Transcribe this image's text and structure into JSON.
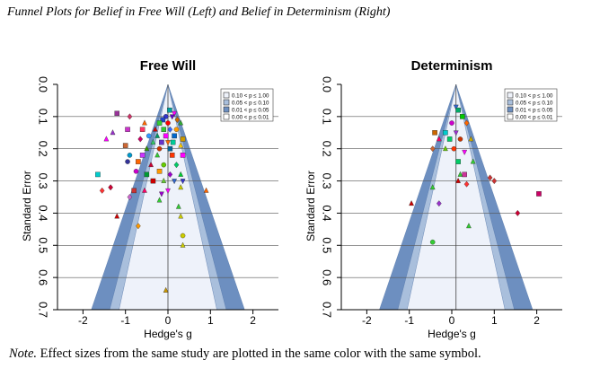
{
  "figure": {
    "title": "Funnel Plots for Belief in Free Will (Left) and Belief in Determinism (Right)",
    "note_label": "Note.",
    "note_text": " Effect sizes from the same study are plotted in the same color with the same symbol."
  },
  "colors": {
    "band_dark": "#6d8fc0",
    "band_mid": "#a9bfdc",
    "band_light": "#eef2fa",
    "grid": "#555555",
    "axis": "#000000"
  },
  "chart_data": [
    {
      "type": "scatter",
      "title": "Free Will",
      "xlabel": "Hedge's g",
      "ylabel": "Standard Error",
      "xlim": [
        -2.6,
        2.6
      ],
      "ylim": [
        0.7,
        0.0
      ],
      "x_ticks": [
        -2,
        -1,
        0,
        1,
        2
      ],
      "x_tick_labels": [
        "-2",
        "-1",
        "0",
        "1",
        "2"
      ],
      "y_ticks": [
        0.0,
        0.1,
        0.2,
        0.3,
        0.4,
        0.5,
        0.6,
        0.7
      ],
      "y_tick_labels": [
        "0.0",
        "0.1",
        "0.2",
        "0.3",
        "0.4",
        "0.5",
        "0.6",
        "0.7"
      ],
      "y_reversed": true,
      "grid": "horizontal",
      "center": 0.0,
      "legend_position": "top-right",
      "legend": [
        "0.10 < p ≤ 1.00",
        "0.05 < p ≤ 0.10",
        "0.01 < p ≤ 0.05",
        "0.00 < p ≤ 0.01"
      ],
      "points": [
        {
          "x": 0.04,
          "y": 0.08,
          "shape": "square",
          "color": "#00a0a0"
        },
        {
          "x": 0.15,
          "y": 0.09,
          "shape": "tri-down",
          "color": "#ff00ff"
        },
        {
          "x": -0.05,
          "y": 0.1,
          "shape": "circle",
          "color": "#3333cc"
        },
        {
          "x": 0.1,
          "y": 0.1,
          "shape": "tri-down",
          "color": "#6600cc"
        },
        {
          "x": 0.22,
          "y": 0.11,
          "shape": "diamond",
          "color": "#cc6600"
        },
        {
          "x": -0.12,
          "y": 0.11,
          "shape": "square",
          "color": "#2244cc"
        },
        {
          "x": -1.2,
          "y": 0.09,
          "shape": "square",
          "color": "#993399"
        },
        {
          "x": -0.9,
          "y": 0.1,
          "shape": "diamond",
          "color": "#cc3366"
        },
        {
          "x": -0.55,
          "y": 0.12,
          "shape": "tri-up",
          "color": "#ff6600"
        },
        {
          "x": -0.2,
          "y": 0.12,
          "shape": "square",
          "color": "#33cc33"
        },
        {
          "x": 0.0,
          "y": 0.12,
          "shape": "circle",
          "color": "#ff0000"
        },
        {
          "x": 0.3,
          "y": 0.12,
          "shape": "tri-up",
          "color": "#33aa33"
        },
        {
          "x": -0.6,
          "y": 0.14,
          "shape": "square",
          "color": "#ff3366"
        },
        {
          "x": -0.3,
          "y": 0.14,
          "shape": "tri-up",
          "color": "#cc0000"
        },
        {
          "x": -0.1,
          "y": 0.14,
          "shape": "square",
          "color": "#33cc33"
        },
        {
          "x": 0.05,
          "y": 0.14,
          "shape": "diamond",
          "color": "#3366ff"
        },
        {
          "x": 0.2,
          "y": 0.14,
          "shape": "circle",
          "color": "#ff9900"
        },
        {
          "x": -1.3,
          "y": 0.15,
          "shape": "tri-up",
          "color": "#9933cc"
        },
        {
          "x": -0.95,
          "y": 0.14,
          "shape": "square",
          "color": "#cc33cc"
        },
        {
          "x": -0.45,
          "y": 0.16,
          "shape": "circle",
          "color": "#3399ff"
        },
        {
          "x": -0.25,
          "y": 0.16,
          "shape": "tri-up",
          "color": "#009966"
        },
        {
          "x": -0.05,
          "y": 0.16,
          "shape": "square",
          "color": "#ff00ff"
        },
        {
          "x": 0.15,
          "y": 0.16,
          "shape": "square",
          "color": "#0066cc"
        },
        {
          "x": 0.35,
          "y": 0.17,
          "shape": "square",
          "color": "#cc9900"
        },
        {
          "x": -1.45,
          "y": 0.17,
          "shape": "tri-up",
          "color": "#ff00ff"
        },
        {
          "x": -0.65,
          "y": 0.17,
          "shape": "diamond",
          "color": "#cc0066"
        },
        {
          "x": -0.35,
          "y": 0.18,
          "shape": "tri-up",
          "color": "#33cc66"
        },
        {
          "x": -0.15,
          "y": 0.18,
          "shape": "square",
          "color": "#6633cc"
        },
        {
          "x": 0.0,
          "y": 0.18,
          "shape": "tri-down",
          "color": "#ff6600"
        },
        {
          "x": 0.12,
          "y": 0.18,
          "shape": "square",
          "color": "#00cc99"
        },
        {
          "x": 0.3,
          "y": 0.19,
          "shape": "tri-up",
          "color": "#ffcc00"
        },
        {
          "x": -1.0,
          "y": 0.19,
          "shape": "square",
          "color": "#cc6633"
        },
        {
          "x": -0.5,
          "y": 0.2,
          "shape": "tri-up",
          "color": "#339900"
        },
        {
          "x": -0.2,
          "y": 0.2,
          "shape": "circle",
          "color": "#cc3300"
        },
        {
          "x": 0.05,
          "y": 0.2,
          "shape": "square",
          "color": "#006699"
        },
        {
          "x": -0.9,
          "y": 0.22,
          "shape": "circle",
          "color": "#0099cc"
        },
        {
          "x": -0.6,
          "y": 0.22,
          "shape": "square",
          "color": "#cc33ff"
        },
        {
          "x": -0.25,
          "y": 0.22,
          "shape": "tri-up",
          "color": "#33cc33"
        },
        {
          "x": 0.1,
          "y": 0.22,
          "shape": "square",
          "color": "#ff3300"
        },
        {
          "x": 0.35,
          "y": 0.22,
          "shape": "square",
          "color": "#ff00ff"
        },
        {
          "x": -0.95,
          "y": 0.24,
          "shape": "circle",
          "color": "#333399"
        },
        {
          "x": -0.7,
          "y": 0.24,
          "shape": "square",
          "color": "#ff6600"
        },
        {
          "x": -0.4,
          "y": 0.25,
          "shape": "tri-up",
          "color": "#cc0033"
        },
        {
          "x": -0.1,
          "y": 0.25,
          "shape": "circle",
          "color": "#66cc00"
        },
        {
          "x": 0.2,
          "y": 0.25,
          "shape": "diamond",
          "color": "#00cc66"
        },
        {
          "x": -1.65,
          "y": 0.28,
          "shape": "square",
          "color": "#00cccc"
        },
        {
          "x": -0.75,
          "y": 0.27,
          "shape": "circle",
          "color": "#cc00cc"
        },
        {
          "x": -0.5,
          "y": 0.28,
          "shape": "square",
          "color": "#009933"
        },
        {
          "x": -0.2,
          "y": 0.27,
          "shape": "square",
          "color": "#ff9900"
        },
        {
          "x": 0.05,
          "y": 0.28,
          "shape": "diamond",
          "color": "#9900cc"
        },
        {
          "x": 0.3,
          "y": 0.28,
          "shape": "tri-up",
          "color": "#00cc33"
        },
        {
          "x": -0.35,
          "y": 0.3,
          "shape": "square",
          "color": "#cc0000"
        },
        {
          "x": -0.1,
          "y": 0.3,
          "shape": "tri-up",
          "color": "#66cc33"
        },
        {
          "x": 0.15,
          "y": 0.3,
          "shape": "tri-down",
          "color": "#3366cc"
        },
        {
          "x": 0.35,
          "y": 0.3,
          "shape": "tri-down",
          "color": "#3333cc"
        },
        {
          "x": -1.35,
          "y": 0.32,
          "shape": "diamond",
          "color": "#cc0033"
        },
        {
          "x": -1.55,
          "y": 0.33,
          "shape": "diamond",
          "color": "#ff3333"
        },
        {
          "x": -0.8,
          "y": 0.33,
          "shape": "square",
          "color": "#cc3333"
        },
        {
          "x": -0.55,
          "y": 0.33,
          "shape": "tri-up",
          "color": "#ff0066"
        },
        {
          "x": -0.15,
          "y": 0.34,
          "shape": "tri-down",
          "color": "#9900cc"
        },
        {
          "x": 0.0,
          "y": 0.33,
          "shape": "tri-down",
          "color": "#ff00ff"
        },
        {
          "x": 0.3,
          "y": 0.32,
          "shape": "tri-up",
          "color": "#cccc00"
        },
        {
          "x": 0.9,
          "y": 0.33,
          "shape": "tri-up",
          "color": "#ff6600"
        },
        {
          "x": -0.9,
          "y": 0.35,
          "shape": "diamond",
          "color": "#cc66cc"
        },
        {
          "x": -0.2,
          "y": 0.36,
          "shape": "tri-up",
          "color": "#33cc33"
        },
        {
          "x": 0.25,
          "y": 0.38,
          "shape": "tri-up",
          "color": "#33cc33"
        },
        {
          "x": -1.2,
          "y": 0.41,
          "shape": "tri-up",
          "color": "#cc0000"
        },
        {
          "x": 0.3,
          "y": 0.41,
          "shape": "tri-up",
          "color": "#cccc00"
        },
        {
          "x": -0.7,
          "y": 0.44,
          "shape": "diamond",
          "color": "#ff9900"
        },
        {
          "x": 0.35,
          "y": 0.47,
          "shape": "circle",
          "color": "#cccc00"
        },
        {
          "x": 0.35,
          "y": 0.5,
          "shape": "tri-up",
          "color": "#cccc00"
        },
        {
          "x": -0.05,
          "y": 0.64,
          "shape": "tri-up",
          "color": "#cc9900"
        }
      ]
    },
    {
      "type": "scatter",
      "title": "Determinism",
      "xlabel": "Hedge's g",
      "ylabel": "Standard Error",
      "xlim": [
        -2.6,
        2.6
      ],
      "ylim": [
        0.7,
        0.0
      ],
      "x_ticks": [
        -2,
        -1,
        0,
        1,
        2
      ],
      "x_tick_labels": [
        "-2",
        "-1",
        "0",
        "1",
        "2"
      ],
      "y_ticks": [
        0.0,
        0.1,
        0.2,
        0.3,
        0.4,
        0.5,
        0.6,
        0.7
      ],
      "y_tick_labels": [
        "0.0",
        "0.1",
        "0.2",
        "0.3",
        "0.4",
        "0.5",
        "0.6",
        "0.7"
      ],
      "y_reversed": true,
      "grid": "horizontal",
      "center": 0.1,
      "legend_position": "top-right",
      "legend": [
        "0.10 < p ≤ 1.00",
        "0.05 < p ≤ 0.10",
        "0.01 < p ≤ 0.05",
        "0.00 < p ≤ 0.01"
      ],
      "points": [
        {
          "x": 0.1,
          "y": 0.07,
          "shape": "tri-down",
          "color": "#3366cc"
        },
        {
          "x": 0.15,
          "y": 0.08,
          "shape": "square",
          "color": "#00aa66"
        },
        {
          "x": 0.25,
          "y": 0.1,
          "shape": "square",
          "color": "#00cc00"
        },
        {
          "x": 0.0,
          "y": 0.12,
          "shape": "circle",
          "color": "#cc00cc"
        },
        {
          "x": 0.35,
          "y": 0.12,
          "shape": "diamond",
          "color": "#ff6600"
        },
        {
          "x": -0.4,
          "y": 0.15,
          "shape": "square",
          "color": "#cc6600"
        },
        {
          "x": -0.15,
          "y": 0.15,
          "shape": "square",
          "color": "#00cccc"
        },
        {
          "x": 0.1,
          "y": 0.15,
          "shape": "tri-down",
          "color": "#9933cc"
        },
        {
          "x": -0.3,
          "y": 0.17,
          "shape": "tri-up",
          "color": "#ff0066"
        },
        {
          "x": -0.05,
          "y": 0.17,
          "shape": "square",
          "color": "#00cc66"
        },
        {
          "x": 0.2,
          "y": 0.17,
          "shape": "circle",
          "color": "#cc3300"
        },
        {
          "x": 0.45,
          "y": 0.17,
          "shape": "tri-up",
          "color": "#ccaa00"
        },
        {
          "x": -0.45,
          "y": 0.2,
          "shape": "diamond",
          "color": "#cc6633"
        },
        {
          "x": -0.15,
          "y": 0.2,
          "shape": "tri-up",
          "color": "#66cc00"
        },
        {
          "x": 0.05,
          "y": 0.2,
          "shape": "circle",
          "color": "#ff3300"
        },
        {
          "x": 0.3,
          "y": 0.21,
          "shape": "tri-down",
          "color": "#ff00ff"
        },
        {
          "x": 0.15,
          "y": 0.24,
          "shape": "square",
          "color": "#00cc66"
        },
        {
          "x": 0.5,
          "y": 0.24,
          "shape": "tri-up",
          "color": "#33cc33"
        },
        {
          "x": 0.2,
          "y": 0.28,
          "shape": "tri-up",
          "color": "#33cc33"
        },
        {
          "x": 0.3,
          "y": 0.28,
          "shape": "square",
          "color": "#cc3399"
        },
        {
          "x": 0.9,
          "y": 0.29,
          "shape": "diamond",
          "color": "#cc3333"
        },
        {
          "x": 1.0,
          "y": 0.3,
          "shape": "diamond",
          "color": "#cc3333"
        },
        {
          "x": 0.15,
          "y": 0.3,
          "shape": "tri-up",
          "color": "#cc0000"
        },
        {
          "x": 0.35,
          "y": 0.31,
          "shape": "diamond",
          "color": "#ff3333"
        },
        {
          "x": -0.45,
          "y": 0.32,
          "shape": "tri-up",
          "color": "#33cc33"
        },
        {
          "x": 2.05,
          "y": 0.34,
          "shape": "square",
          "color": "#cc0066"
        },
        {
          "x": -0.95,
          "y": 0.37,
          "shape": "tri-up",
          "color": "#cc0000"
        },
        {
          "x": -0.3,
          "y": 0.37,
          "shape": "diamond",
          "color": "#9933cc"
        },
        {
          "x": 1.55,
          "y": 0.4,
          "shape": "diamond",
          "color": "#cc0033"
        },
        {
          "x": 0.4,
          "y": 0.44,
          "shape": "tri-up",
          "color": "#33cc33"
        },
        {
          "x": -0.45,
          "y": 0.49,
          "shape": "circle",
          "color": "#33cc33"
        }
      ]
    }
  ]
}
